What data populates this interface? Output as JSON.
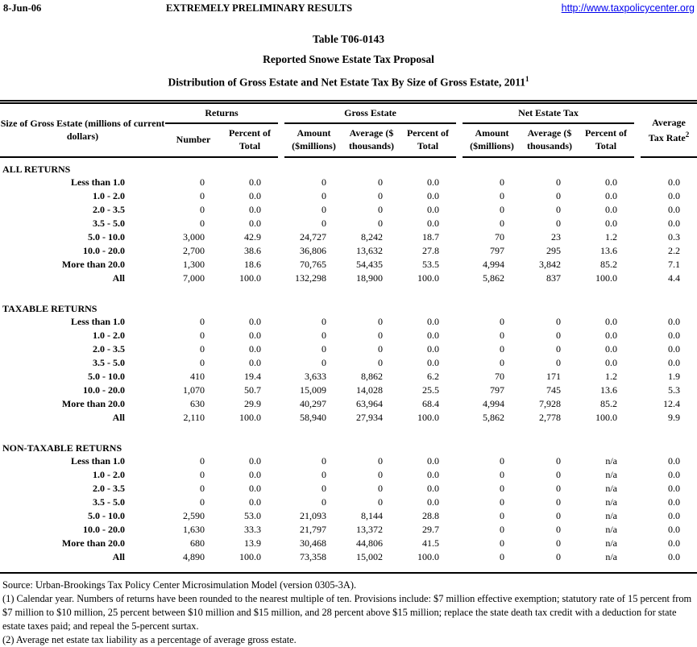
{
  "header": {
    "date": "8-Jun-06",
    "status": "EXTREMELY PRELIMINARY RESULTS",
    "url": "http://www.taxpolicycenter.org"
  },
  "title": {
    "line1": "Table T06-0143",
    "line2": "Reported Snowe Estate Tax Proposal",
    "line3": "Distribution of Gross Estate and Net Estate Tax By Size of Gross Estate, 2011",
    "line3_sup": "1"
  },
  "table": {
    "stub_header": "Size of Gross Estate (millions of current dollars)",
    "groups": [
      {
        "label": "Returns"
      },
      {
        "label": "Gross Estate"
      },
      {
        "label": "Net Estate Tax"
      }
    ],
    "columns": [
      "Number",
      "Percent of Total",
      "Amount ($millions)",
      "Average ($ thousands)",
      "Percent of Total",
      "Amount ($millions)",
      "Average ($ thousands)",
      "Percent of Total"
    ],
    "avg_tax_rate": {
      "line1": "Average",
      "line2": "Tax Rate",
      "sup": "2"
    },
    "sections": [
      {
        "label": "ALL RETURNS",
        "rows": [
          {
            "label": "Less than 1.0",
            "values": [
              "0",
              "0.0",
              "0",
              "0",
              "0.0",
              "0",
              "0",
              "0.0",
              "0.0"
            ]
          },
          {
            "label": "1.0 - 2.0",
            "values": [
              "0",
              "0.0",
              "0",
              "0",
              "0.0",
              "0",
              "0",
              "0.0",
              "0.0"
            ]
          },
          {
            "label": "2.0 - 3.5",
            "values": [
              "0",
              "0.0",
              "0",
              "0",
              "0.0",
              "0",
              "0",
              "0.0",
              "0.0"
            ]
          },
          {
            "label": "3.5 - 5.0",
            "values": [
              "0",
              "0.0",
              "0",
              "0",
              "0.0",
              "0",
              "0",
              "0.0",
              "0.0"
            ]
          },
          {
            "label": "5.0 - 10.0",
            "values": [
              "3,000",
              "42.9",
              "24,727",
              "8,242",
              "18.7",
              "70",
              "23",
              "1.2",
              "0.3"
            ]
          },
          {
            "label": "10.0 - 20.0",
            "values": [
              "2,700",
              "38.6",
              "36,806",
              "13,632",
              "27.8",
              "797",
              "295",
              "13.6",
              "2.2"
            ]
          },
          {
            "label": "More than 20.0",
            "values": [
              "1,300",
              "18.6",
              "70,765",
              "54,435",
              "53.5",
              "4,994",
              "3,842",
              "85.2",
              "7.1"
            ]
          },
          {
            "label": "All",
            "values": [
              "7,000",
              "100.0",
              "132,298",
              "18,900",
              "100.0",
              "5,862",
              "837",
              "100.0",
              "4.4"
            ]
          }
        ]
      },
      {
        "label": "TAXABLE RETURNS",
        "rows": [
          {
            "label": "Less than 1.0",
            "values": [
              "0",
              "0.0",
              "0",
              "0",
              "0.0",
              "0",
              "0",
              "0.0",
              "0.0"
            ]
          },
          {
            "label": "1.0 - 2.0",
            "values": [
              "0",
              "0.0",
              "0",
              "0",
              "0.0",
              "0",
              "0",
              "0.0",
              "0.0"
            ]
          },
          {
            "label": "2.0 - 3.5",
            "values": [
              "0",
              "0.0",
              "0",
              "0",
              "0.0",
              "0",
              "0",
              "0.0",
              "0.0"
            ]
          },
          {
            "label": "3.5 - 5.0",
            "values": [
              "0",
              "0.0",
              "0",
              "0",
              "0.0",
              "0",
              "0",
              "0.0",
              "0.0"
            ]
          },
          {
            "label": "5.0 - 10.0",
            "values": [
              "410",
              "19.4",
              "3,633",
              "8,862",
              "6.2",
              "70",
              "171",
              "1.2",
              "1.9"
            ]
          },
          {
            "label": "10.0 - 20.0",
            "values": [
              "1,070",
              "50.7",
              "15,009",
              "14,028",
              "25.5",
              "797",
              "745",
              "13.6",
              "5.3"
            ]
          },
          {
            "label": "More than 20.0",
            "values": [
              "630",
              "29.9",
              "40,297",
              "63,964",
              "68.4",
              "4,994",
              "7,928",
              "85.2",
              "12.4"
            ]
          },
          {
            "label": "All",
            "values": [
              "2,110",
              "100.0",
              "58,940",
              "27,934",
              "100.0",
              "5,862",
              "2,778",
              "100.0",
              "9.9"
            ]
          }
        ]
      },
      {
        "label": "NON-TAXABLE RETURNS",
        "rows": [
          {
            "label": "Less than 1.0",
            "values": [
              "0",
              "0.0",
              "0",
              "0",
              "0.0",
              "0",
              "0",
              "n/a",
              "0.0"
            ]
          },
          {
            "label": "1.0 - 2.0",
            "values": [
              "0",
              "0.0",
              "0",
              "0",
              "0.0",
              "0",
              "0",
              "n/a",
              "0.0"
            ]
          },
          {
            "label": "2.0 - 3.5",
            "values": [
              "0",
              "0.0",
              "0",
              "0",
              "0.0",
              "0",
              "0",
              "n/a",
              "0.0"
            ]
          },
          {
            "label": "3.5 - 5.0",
            "values": [
              "0",
              "0.0",
              "0",
              "0",
              "0.0",
              "0",
              "0",
              "n/a",
              "0.0"
            ]
          },
          {
            "label": "5.0 - 10.0",
            "values": [
              "2,590",
              "53.0",
              "21,093",
              "8,144",
              "28.8",
              "0",
              "0",
              "n/a",
              "0.0"
            ]
          },
          {
            "label": "10.0 - 20.0",
            "values": [
              "1,630",
              "33.3",
              "21,797",
              "13,372",
              "29.7",
              "0",
              "0",
              "n/a",
              "0.0"
            ]
          },
          {
            "label": "More than 20.0",
            "values": [
              "680",
              "13.9",
              "30,468",
              "44,806",
              "41.5",
              "0",
              "0",
              "n/a",
              "0.0"
            ]
          },
          {
            "label": "All",
            "values": [
              "4,890",
              "100.0",
              "73,358",
              "15,002",
              "100.0",
              "0",
              "0",
              "n/a",
              "0.0"
            ]
          }
        ]
      }
    ]
  },
  "footnotes": {
    "source": "Source: Urban-Brookings Tax Policy Center Microsimulation Model (version 0305-3A).",
    "note1": "(1) Calendar year. Numbers of returns have been rounded to the nearest multiple of ten. Provisions include: $7 million effective exemption; statutory rate of 15 percent from $7 million to $10 million, 25 percent between $10 million and $15 million, and 28 percent above $15 million; replace the state death tax credit with a deduction for state estate taxes paid; and repeal the 5-percent surtax.",
    "note2": "(2) Average net estate tax liability as a percentage of average gross estate."
  }
}
